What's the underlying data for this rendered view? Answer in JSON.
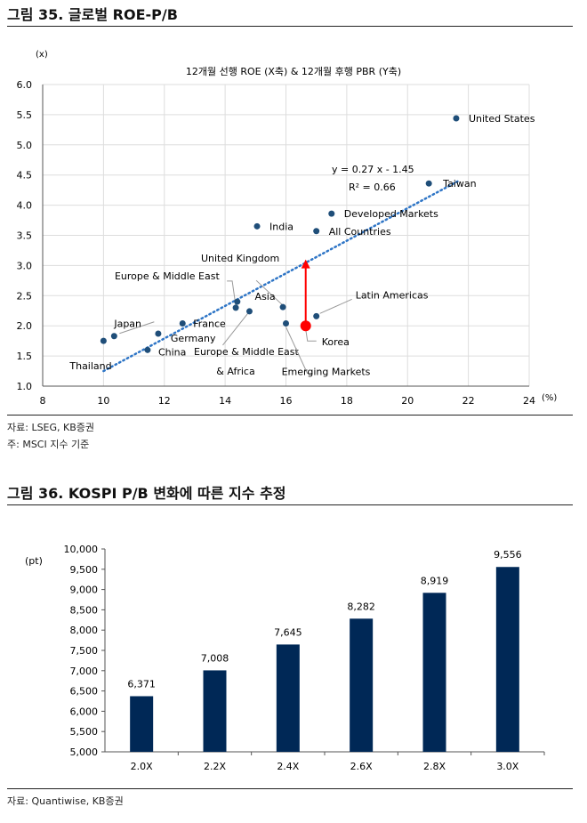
{
  "figure1": {
    "title": "그림 35. 글로벌 ROE-P/B",
    "source": "자료: LSEG, KB증권",
    "note": "주: MSCI 지수 기준"
  },
  "figure2": {
    "title": "그림 36. KOSPI P/B 변화에 따른 지수 추정",
    "source": "자료: Quantiwise, KB증권"
  },
  "chart_data": [
    {
      "type": "scatter",
      "title": "12개월 선행 ROE (X축) & 12개월 후행 PBR (Y축)",
      "xlabel": "(%)",
      "ylabel": "(x)",
      "xlim": [
        8,
        24
      ],
      "ylim": [
        1.0,
        6.0
      ],
      "xticks": [
        "8",
        "10",
        "12",
        "14",
        "16",
        "18",
        "20",
        "22",
        "24"
      ],
      "yticks": [
        "1.0",
        "1.5",
        "2.0",
        "2.5",
        "3.0",
        "3.5",
        "4.0",
        "4.5",
        "5.0",
        "5.5",
        "6.0"
      ],
      "grid": true,
      "point_color": "#1f4e79",
      "highlight_color": "#ff0000",
      "trendline": {
        "equation": "y = 0.27 x - 1.45",
        "r2": "R² = 0.66",
        "x": [
          10,
          21.7
        ],
        "color": "#2e75c6"
      },
      "points": [
        {
          "label": "United States",
          "x": 21.6,
          "y": 5.44
        },
        {
          "label": "Taiwan",
          "x": 20.7,
          "y": 4.36
        },
        {
          "label": "Developed Markets",
          "x": 17.5,
          "y": 3.86
        },
        {
          "label": "India",
          "x": 15.05,
          "y": 3.65
        },
        {
          "label": "All Countries",
          "x": 17.0,
          "y": 3.57
        },
        {
          "label": "United Kingdom",
          "x": 14.35,
          "y": 2.3
        },
        {
          "label": "Europe & Middle East",
          "x": 14.4,
          "y": 2.4
        },
        {
          "label": "Asia",
          "x": 15.9,
          "y": 2.31
        },
        {
          "label": "Europe & Middle East & Africa",
          "x": 14.8,
          "y": 2.24
        },
        {
          "label": "Emerging Markets",
          "x": 16.0,
          "y": 2.04
        },
        {
          "label": "Latin Americas",
          "x": 17.0,
          "y": 2.16
        },
        {
          "label": "France",
          "x": 12.6,
          "y": 2.04
        },
        {
          "label": "Germany",
          "x": 11.8,
          "y": 1.87
        },
        {
          "label": "Japan",
          "x": 10.35,
          "y": 1.83
        },
        {
          "label": "Thailand",
          "x": 10.0,
          "y": 1.75
        },
        {
          "label": "China",
          "x": 11.45,
          "y": 1.6
        },
        {
          "label": "Korea",
          "x": 16.65,
          "y": 2.0,
          "highlight": true
        }
      ],
      "arrow": {
        "from": [
          16.65,
          2.0
        ],
        "to": [
          16.65,
          3.1
        ]
      }
    },
    {
      "type": "bar",
      "ylabel": "(pt)",
      "ylim": [
        5000,
        10000
      ],
      "yticks": [
        "5,000",
        "5,500",
        "6,000",
        "6,500",
        "7,000",
        "7,500",
        "8,000",
        "8,500",
        "9,000",
        "9,500",
        "10,000"
      ],
      "categories": [
        "2.0X",
        "2.2X",
        "2.4X",
        "2.6X",
        "2.8X",
        "3.0X"
      ],
      "values": [
        6371,
        7008,
        7645,
        8282,
        8919,
        9556
      ],
      "value_labels": [
        "6,371",
        "7,008",
        "7,645",
        "8,282",
        "8,919",
        "9,556"
      ],
      "bar_color": "#002856",
      "grid": false
    }
  ]
}
